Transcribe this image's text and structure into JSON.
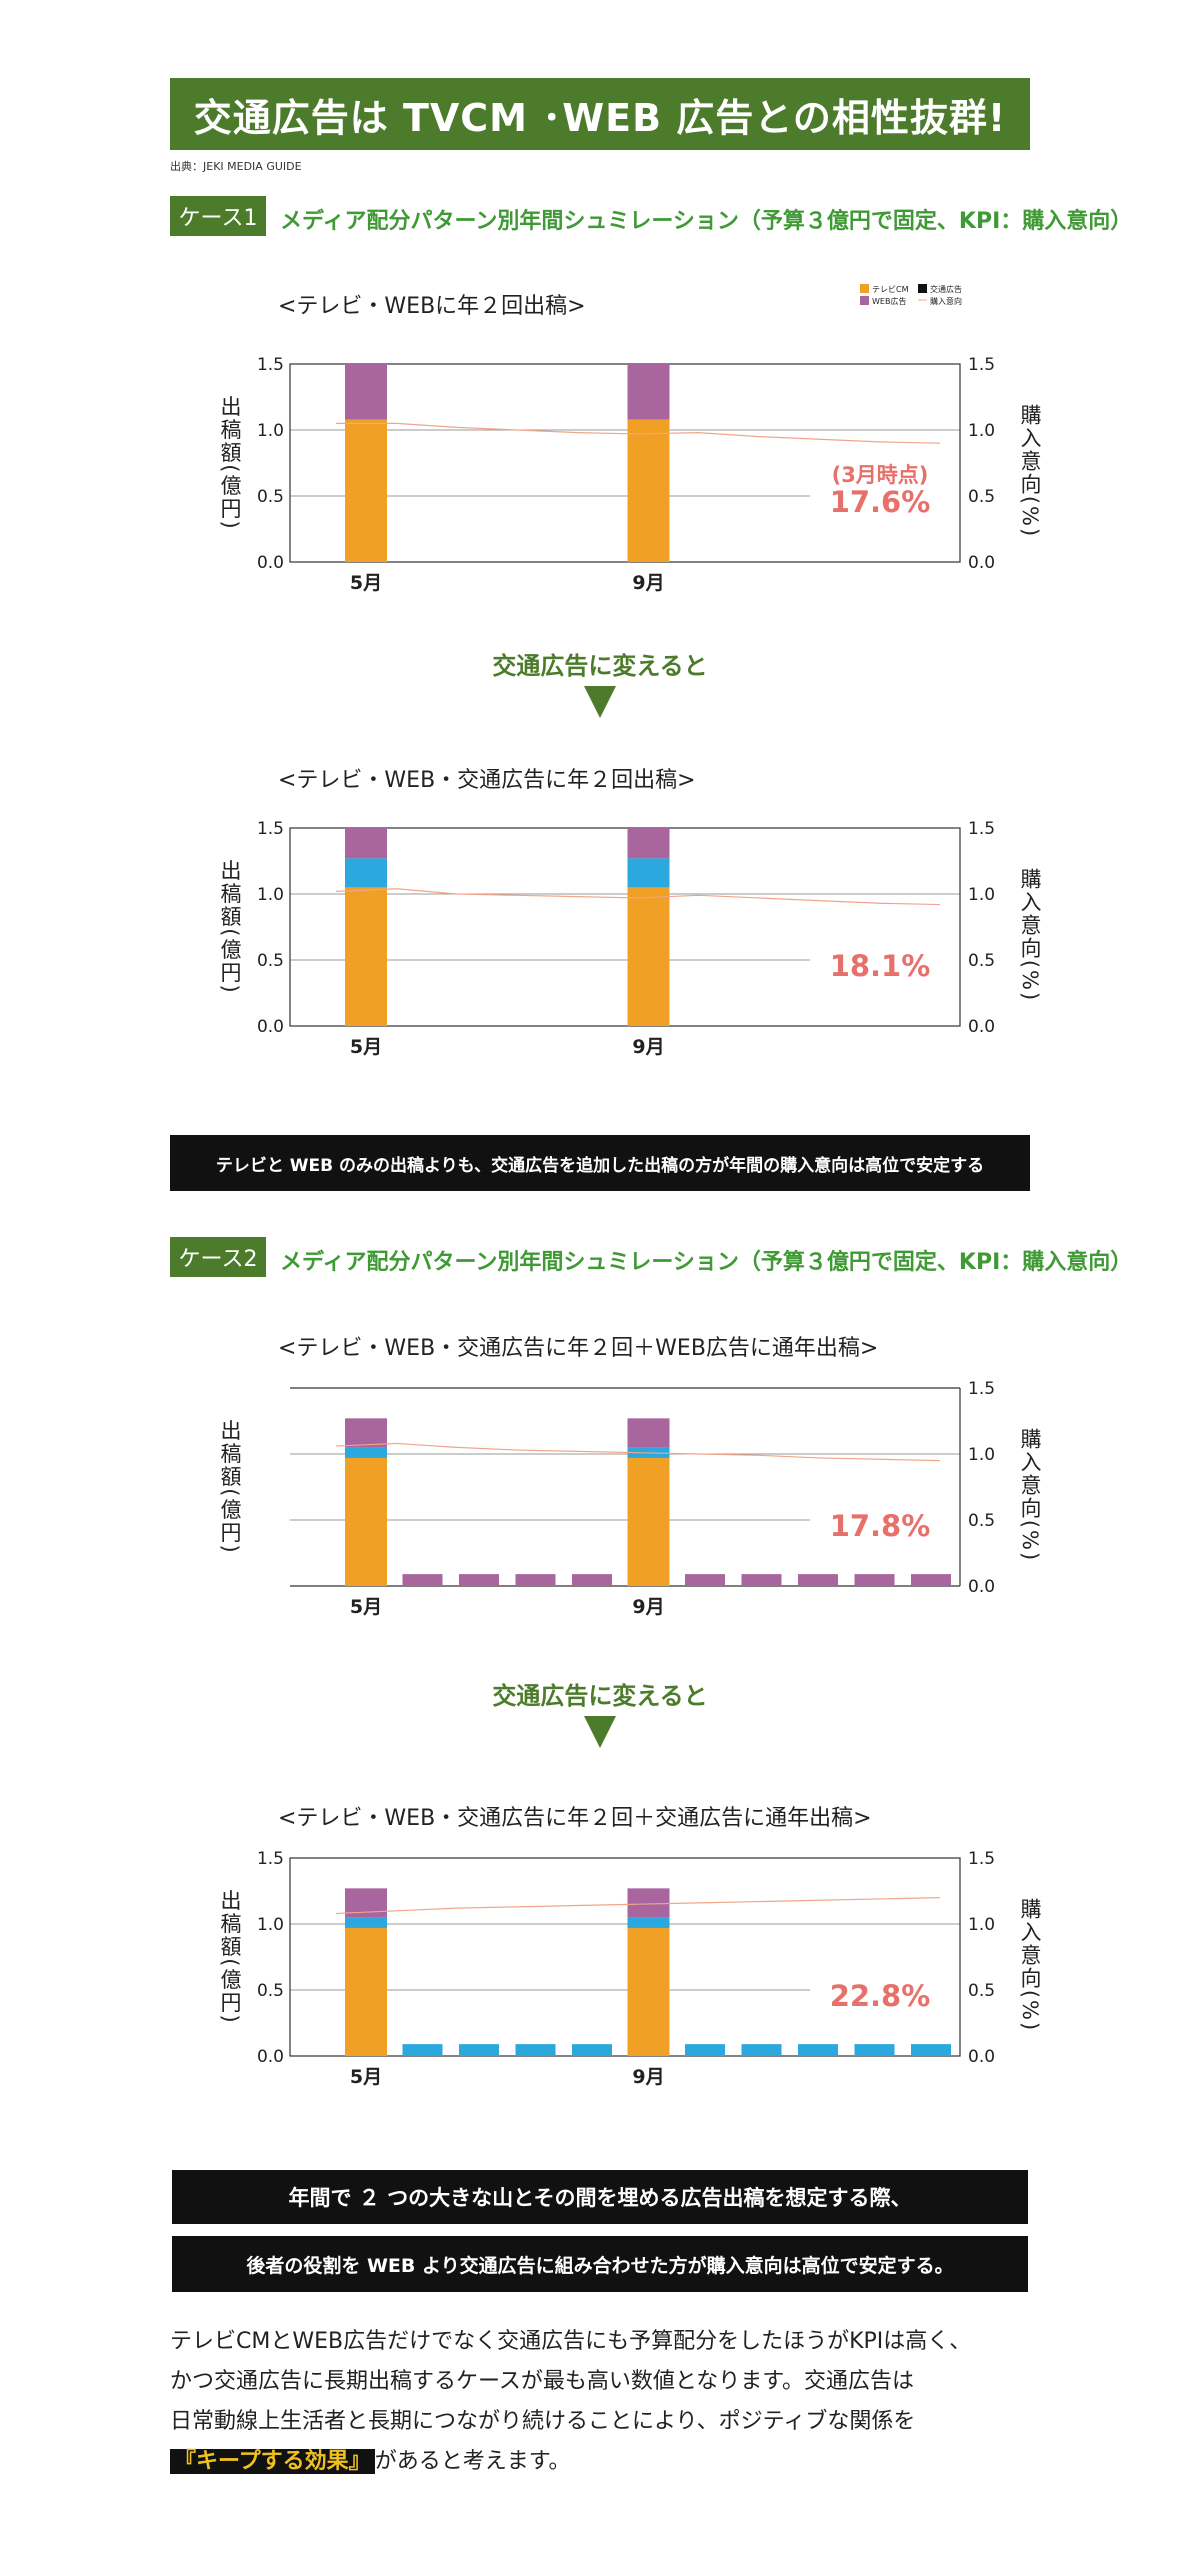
{
  "header": {
    "banner": "交通広告は TVCM ･WEB 広告との相性抜群!",
    "source": "出典：JEKI MEDIA GUIDE"
  },
  "case1": {
    "tag": "ケース1",
    "title": "メディア配分パターン別年間シュミレーション（予算３億円で固定、KPI：購入意向）",
    "arrow_label": "交通広告に変えると",
    "conclusion": "テレビと WEB のみの出稿よりも、交通広告を追加した出稿の方が年間の購入意向は高位で安定する"
  },
  "case2": {
    "tag": "ケース2",
    "title": "メディア配分パターン別年間シュミレーション（予算３億円で固定、KPI：購入意向）",
    "arrow_label": "交通広告に変えると"
  },
  "colors": {
    "tv": "#f0a024",
    "web": "#a8659e",
    "transit": "#2ba8de",
    "kpi": "#f0a68a",
    "pct": "#e8706a"
  },
  "legend": {
    "tv": "テレビCM",
    "transit": "交通広告",
    "web": "WEB広告",
    "kpi": "購入意向"
  },
  "chart_data": [
    {
      "type": "bar",
      "subtitle": "<テレビ・WEBに年２回出稿>",
      "ylabel": "出稿額(億円)",
      "y2label": "購入意向(%)",
      "ylim": [
        0,
        1.5
      ],
      "yticks": [
        "0.0",
        "0.5",
        "1.0",
        "1.5"
      ],
      "x_labels": [
        "5月",
        "9月"
      ],
      "annotation_prefix": "(3月時点)",
      "annotation": "17.6%",
      "legend": true,
      "axis_box": "full",
      "series": [
        {
          "name": "テレビCM",
          "values": [
            1.08,
            0,
            0,
            0,
            0,
            1.08,
            0,
            0,
            0,
            0,
            0
          ]
        },
        {
          "name": "交通広告",
          "values": [
            0,
            0,
            0,
            0,
            0,
            0,
            0,
            0,
            0,
            0,
            0
          ]
        },
        {
          "name": "WEB広告",
          "values": [
            0.42,
            0,
            0,
            0,
            0,
            0.42,
            0,
            0,
            0,
            0,
            0
          ]
        }
      ],
      "kpi_line": [
        1.05,
        1.05,
        1.02,
        1.0,
        0.98,
        0.97,
        0.98,
        0.95,
        0.93,
        0.91,
        0.9
      ]
    },
    {
      "type": "bar",
      "subtitle": "<テレビ・WEB・交通広告に年２回出稿>",
      "ylabel": "出稿額(億円)",
      "y2label": "購入意向(%)",
      "ylim": [
        0,
        1.5
      ],
      "yticks": [
        "0.0",
        "0.5",
        "1.0",
        "1.5"
      ],
      "x_labels": [
        "5月",
        "9月"
      ],
      "annotation": "18.1%",
      "axis_box": "full",
      "series": [
        {
          "name": "テレビCM",
          "values": [
            1.05,
            0,
            0,
            0,
            0,
            1.05,
            0,
            0,
            0,
            0,
            0
          ]
        },
        {
          "name": "交通広告",
          "values": [
            0.22,
            0,
            0,
            0,
            0,
            0.22,
            0,
            0,
            0,
            0,
            0
          ]
        },
        {
          "name": "WEB広告",
          "values": [
            0.23,
            0,
            0,
            0,
            0,
            0.23,
            0,
            0,
            0,
            0,
            0
          ]
        }
      ],
      "kpi_line": [
        1.02,
        1.04,
        1.0,
        0.99,
        0.98,
        0.97,
        0.99,
        0.97,
        0.95,
        0.93,
        0.92
      ]
    },
    {
      "type": "bar",
      "subtitle": "<テレビ・WEB・交通広告に年２回＋WEB広告に通年出稿>",
      "ylabel": "出稿額(億円)",
      "y2label": "購入意向(%)",
      "ylim": [
        0,
        1.5
      ],
      "yticks": [
        "0.0",
        "0.5",
        "1.0",
        "1.5"
      ],
      "left_ticks": false,
      "x_labels": [
        "5月",
        "9月"
      ],
      "annotation": "17.8%",
      "axis_box": "open",
      "series": [
        {
          "name": "テレビCM",
          "values": [
            0.97,
            0,
            0,
            0,
            0,
            0.97,
            0,
            0,
            0,
            0,
            0
          ]
        },
        {
          "name": "交通広告",
          "values": [
            0.08,
            0,
            0,
            0,
            0,
            0.08,
            0,
            0,
            0,
            0,
            0
          ]
        },
        {
          "name": "WEB広告",
          "values": [
            0.22,
            0.09,
            0.09,
            0.09,
            0.09,
            0.22,
            0.09,
            0.09,
            0.09,
            0.09,
            0.09
          ]
        }
      ],
      "kpi_line": [
        1.06,
        1.08,
        1.05,
        1.03,
        1.02,
        1.01,
        1.0,
        0.99,
        0.97,
        0.96,
        0.95
      ]
    },
    {
      "type": "bar",
      "subtitle": "<テレビ・WEB・交通広告に年２回＋交通広告に通年出稿>",
      "ylabel": "出稿額(億円)",
      "y2label": "購入意向(%)",
      "ylim": [
        0,
        1.5
      ],
      "yticks": [
        "0.0",
        "0.5",
        "1.0",
        "1.5"
      ],
      "x_labels": [
        "5月",
        "9月"
      ],
      "annotation": "22.8%",
      "axis_box": "full",
      "series": [
        {
          "name": "テレビCM",
          "values": [
            0.97,
            0,
            0,
            0,
            0,
            0.97,
            0,
            0,
            0,
            0,
            0
          ]
        },
        {
          "name": "交通広告",
          "values": [
            0.08,
            0.09,
            0.09,
            0.09,
            0.09,
            0.08,
            0.09,
            0.09,
            0.09,
            0.09,
            0.09
          ]
        },
        {
          "name": "WEB広告",
          "values": [
            0.22,
            0,
            0,
            0,
            0,
            0.22,
            0,
            0,
            0,
            0,
            0
          ]
        }
      ],
      "kpi_line": [
        1.08,
        1.1,
        1.12,
        1.13,
        1.14,
        1.15,
        1.16,
        1.17,
        1.18,
        1.19,
        1.2
      ]
    }
  ],
  "summary": {
    "line1": "年間で ２ つの大きな山とその間を埋める広告出稿を想定する際、",
    "line2": "後者の役割を WEB より交通広告に組み合わせた方が購入意向は高位で安定する。"
  },
  "paragraph": {
    "l1": "テレビCMとWEB広告だけでなく交通広告にも予算配分をしたほうがKPIは高く、",
    "l2": "かつ交通広告に長期出稿するケースが最も高い数値となります。交通広告は",
    "l3": "日常動線上生活者と長期につながり続けることにより、ポジティブな関係を",
    "highlight": "『キープする効果』",
    "tail": "があると考えます。"
  }
}
